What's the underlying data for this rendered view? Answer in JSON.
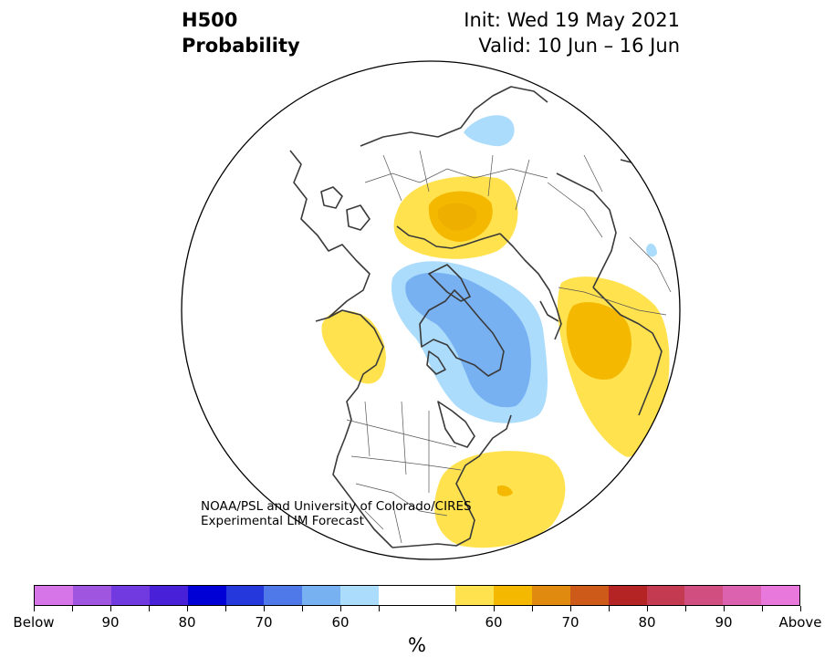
{
  "header": {
    "title_line1": "H500",
    "title_line2": "Probability",
    "init": "Init: Wed 19 May 2021",
    "valid": "Valid: 10 Jun – 16 Jun"
  },
  "credit": {
    "line1": "NOAA/PSL and University of Colorado/CIRES",
    "line2": "Experimental LIM Forecast"
  },
  "colorbar": {
    "colors": [
      "#d675e8",
      "#9f55e0",
      "#7139e0",
      "#4720d8",
      "#0000d6",
      "#2438dc",
      "#4f78e8",
      "#78b1f2",
      "#acdcfc",
      "#ffffff",
      "#ffffff",
      "#ffe24e",
      "#f4b800",
      "#e08a10",
      "#cd5a18",
      "#b42424",
      "#c43a50",
      "#d04e80",
      "#dc62b0",
      "#e878dc"
    ],
    "labels": [
      "Below",
      "90",
      "80",
      "70",
      "60",
      "60",
      "70",
      "80",
      "90",
      "Above"
    ],
    "unit": "%"
  },
  "palette": {
    "yellow": "#ffe24e",
    "gold": "#f4b800",
    "orange": "#e08a10",
    "lightblue": "#acdcfc",
    "blue": "#78b1f2",
    "coast": "#3a3a3a",
    "border": "#555555"
  }
}
